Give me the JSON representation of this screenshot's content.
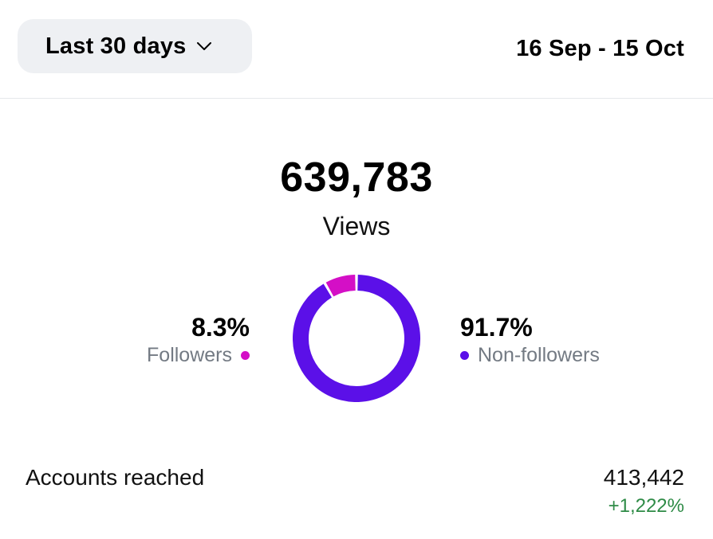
{
  "header": {
    "range_selector": {
      "label": "Last 30 days",
      "icon": "chevron-down-icon"
    },
    "date_range": "16 Sep - 15 Oct"
  },
  "views": {
    "value": "639,783",
    "label": "Views"
  },
  "breakdown": {
    "followers": {
      "percent": "8.3%",
      "label": "Followers",
      "fraction": 0.083,
      "color": "#d40fc6"
    },
    "non_followers": {
      "percent": "91.7%",
      "label": "Non-followers",
      "fraction": 0.917,
      "color": "#5b10e8"
    }
  },
  "accounts_reached": {
    "label": "Accounts reached",
    "value": "413,442",
    "change": "+1,222%",
    "change_color": "#2e8b46"
  }
}
